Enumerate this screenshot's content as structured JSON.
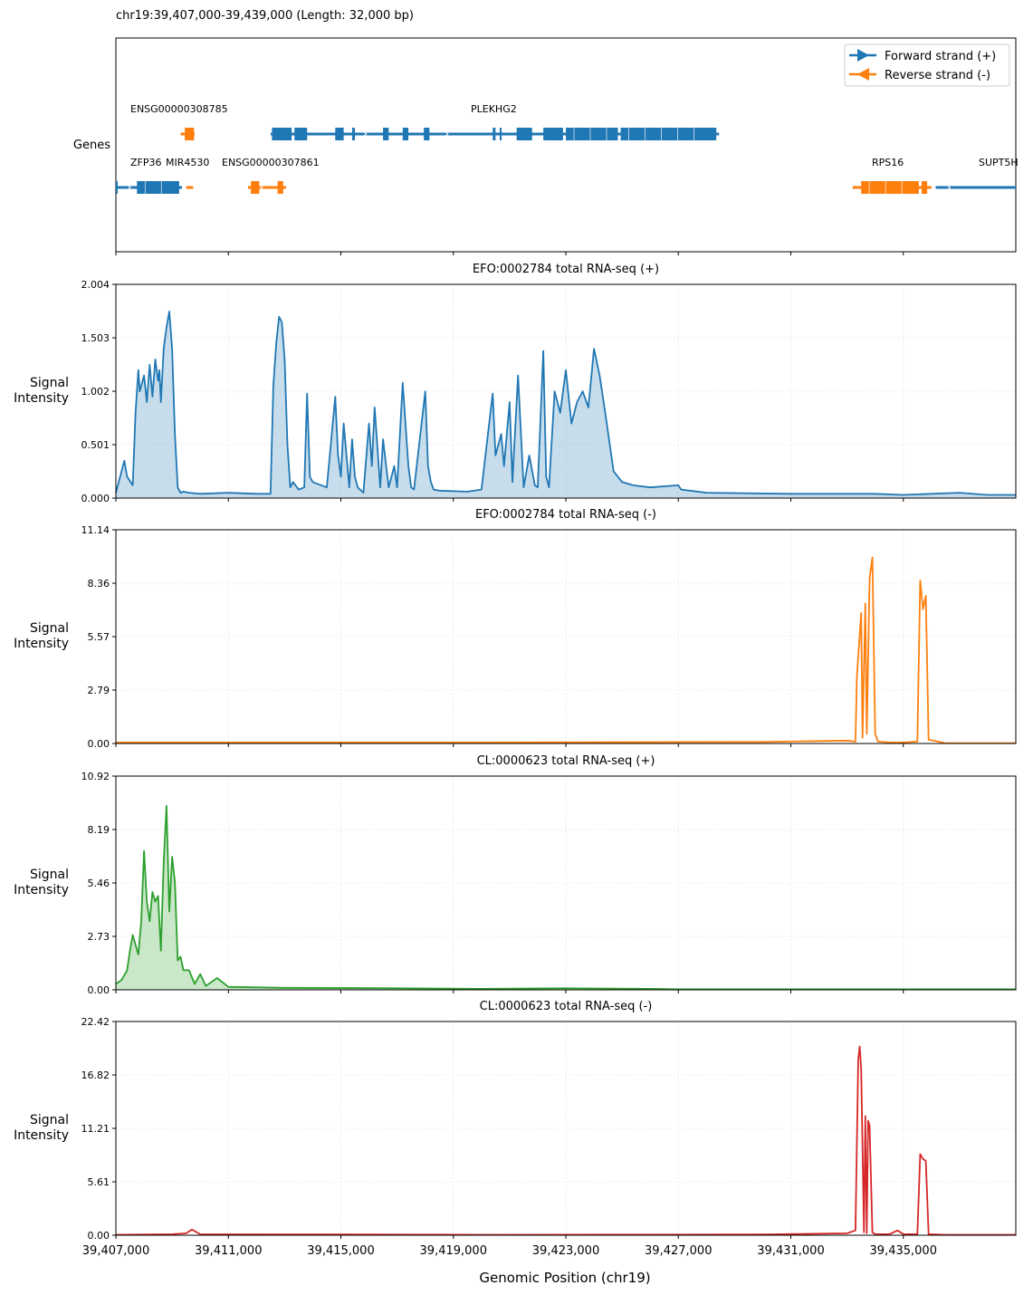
{
  "region_header": "chr19:39,407,000-39,439,000  (Length: 32,000 bp)",
  "genes_track": {
    "ylabel": "Genes",
    "legend": [
      {
        "label": "Forward strand (+)",
        "color": "#1f77b4",
        "direction": "right"
      },
      {
        "label": "Reverse strand (-)",
        "color": "#ff7f0e",
        "direction": "left"
      }
    ],
    "genes": [
      {
        "name": "ENSG00000308785",
        "strand": "-",
        "row": 0,
        "start": 39409300,
        "end": 39409800,
        "exons": [
          [
            39409450,
            39409780
          ]
        ]
      },
      {
        "name": "PLEKHG2",
        "strand": "+",
        "row": 0,
        "start": 39412500,
        "end": 39428450,
        "exons": [
          [
            39412550,
            39413250
          ],
          [
            39413350,
            39413800
          ],
          [
            39414800,
            39415100
          ],
          [
            39415400,
            39415500
          ],
          [
            39416500,
            39416700
          ],
          [
            39417200,
            39417400
          ],
          [
            39417950,
            39418150
          ],
          [
            39420400,
            39420500
          ],
          [
            39420650,
            39420700
          ],
          [
            39421250,
            39421800
          ],
          [
            39422200,
            39422900
          ],
          [
            39423000,
            39424850
          ],
          [
            39424950,
            39428350
          ]
        ]
      },
      {
        "name": "ZFP36",
        "strand": "+",
        "row": 1,
        "start": 39407000,
        "end": 39409350,
        "exons": [
          [
            39407000,
            39407050
          ],
          [
            39407750,
            39409250
          ]
        ]
      },
      {
        "name": "MIR4530",
        "strand": "-",
        "row": 1,
        "start": 39409500,
        "end": 39409750,
        "exons": []
      },
      {
        "name": "ENSG00000307861",
        "strand": "-",
        "row": 1,
        "start": 39411700,
        "end": 39413050,
        "exons": [
          [
            39411800,
            39412100
          ],
          [
            39412750,
            39412950
          ]
        ]
      },
      {
        "name": "RPS16",
        "strand": "-",
        "row": 1,
        "start": 39433200,
        "end": 39436000,
        "exons": [
          [
            39433500,
            39435550
          ],
          [
            39435650,
            39435850
          ]
        ]
      },
      {
        "name": "SUPT5H",
        "strand": "+",
        "row": 1,
        "start": 39436150,
        "end": 39439000,
        "exons": []
      }
    ]
  },
  "chart_data": [
    {
      "type": "area",
      "title": "EFO:0002784 total RNA-seq (+)",
      "ylabel": "Signal Intensity",
      "color": "#1f77b4",
      "fill": true,
      "yticks": [
        "0.000",
        "0.501",
        "1.002",
        "1.503",
        "2.004"
      ],
      "ylim": [
        0,
        2.004
      ],
      "x": [
        39407000,
        39407300,
        39407400,
        39407600,
        39407700,
        39407800,
        39407850,
        39408000,
        39408100,
        39408200,
        39408300,
        39408400,
        39408500,
        39408550,
        39408600,
        39408700,
        39408800,
        39408900,
        39409000,
        39409100,
        39409200,
        39409300,
        39409400,
        39409600,
        39410000,
        39411000,
        39412000,
        39412500,
        39412600,
        39412700,
        39412800,
        39412900,
        39413000,
        39413100,
        39413200,
        39413300,
        39413500,
        39413700,
        39413800,
        39413900,
        39414000,
        39414500,
        39414800,
        39414900,
        39415000,
        39415100,
        39415300,
        39415400,
        39415500,
        39415600,
        39415800,
        39416000,
        39416100,
        39416200,
        39416400,
        39416500,
        39416700,
        39416900,
        39417000,
        39417200,
        39417400,
        39417500,
        39417600,
        39418000,
        39418100,
        39418200,
        39418300,
        39418500,
        39419500,
        39420000,
        39420400,
        39420500,
        39420700,
        39420800,
        39421000,
        39421100,
        39421300,
        39421500,
        39421700,
        39421900,
        39422000,
        39422200,
        39422300,
        39422400,
        39422600,
        39422800,
        39423000,
        39423200,
        39423400,
        39423600,
        39423800,
        39424000,
        39424200,
        39424400,
        39424700,
        39425000,
        39425400,
        39426000,
        39427000,
        39427100,
        39428000,
        39431000,
        39434000,
        39435000,
        39437000,
        39438000,
        39439000
      ],
      "y": [
        0.05,
        0.35,
        0.2,
        0.12,
        0.8,
        1.2,
        1.0,
        1.15,
        0.9,
        1.25,
        0.95,
        1.3,
        1.1,
        1.2,
        0.9,
        1.4,
        1.6,
        1.75,
        1.4,
        0.6,
        0.1,
        0.05,
        0.06,
        0.05,
        0.04,
        0.05,
        0.04,
        0.04,
        1.05,
        1.45,
        1.7,
        1.65,
        1.3,
        0.5,
        0.1,
        0.15,
        0.08,
        0.1,
        0.98,
        0.2,
        0.15,
        0.1,
        0.95,
        0.4,
        0.2,
        0.7,
        0.1,
        0.55,
        0.2,
        0.1,
        0.05,
        0.7,
        0.3,
        0.85,
        0.1,
        0.55,
        0.1,
        0.3,
        0.1,
        1.08,
        0.3,
        0.1,
        0.08,
        1.0,
        0.3,
        0.15,
        0.08,
        0.07,
        0.06,
        0.08,
        0.98,
        0.4,
        0.6,
        0.3,
        0.9,
        0.15,
        1.15,
        0.1,
        0.4,
        0.12,
        0.1,
        1.38,
        0.2,
        0.1,
        1.0,
        0.8,
        1.2,
        0.7,
        0.9,
        1.0,
        0.85,
        1.4,
        1.15,
        0.8,
        0.25,
        0.15,
        0.12,
        0.1,
        0.12,
        0.08,
        0.05,
        0.04,
        0.04,
        0.03,
        0.05,
        0.03,
        0.03
      ]
    },
    {
      "type": "line",
      "title": "EFO:0002784 total RNA-seq (-)",
      "ylabel": "Signal Intensity",
      "color": "#ff7f0e",
      "fill": false,
      "yticks": [
        "0.00",
        "2.79",
        "5.57",
        "8.36",
        "11.14"
      ],
      "ylim": [
        0,
        11.14
      ],
      "x": [
        39407000,
        39420000,
        39430000,
        39433000,
        39433300,
        39433350,
        39433500,
        39433550,
        39433650,
        39433700,
        39433800,
        39433900,
        39434000,
        39434100,
        39434500,
        39435000,
        39435500,
        39435600,
        39435700,
        39435800,
        39435900,
        39436500,
        39439000
      ],
      "y": [
        0.05,
        0.05,
        0.08,
        0.15,
        0.1,
        3.5,
        6.8,
        0.3,
        7.3,
        0.5,
        8.6,
        9.7,
        0.5,
        0.1,
        0.05,
        0.05,
        0.1,
        8.5,
        7.0,
        7.7,
        0.2,
        0.02,
        0.02
      ]
    },
    {
      "type": "area",
      "title": "CL:0000623 total RNA-seq (+)",
      "ylabel": "Signal Intensity",
      "color": "#2ca02c",
      "fill": true,
      "yticks": [
        "0.00",
        "2.73",
        "5.46",
        "8.19",
        "10.92"
      ],
      "ylim": [
        0,
        10.92
      ],
      "x": [
        39407000,
        39407200,
        39407400,
        39407500,
        39407600,
        39407800,
        39407900,
        39408000,
        39408100,
        39408200,
        39408300,
        39408400,
        39408500,
        39408600,
        39408700,
        39408800,
        39408900,
        39409000,
        39409100,
        39409200,
        39409300,
        39409400,
        39409600,
        39409800,
        39410000,
        39410200,
        39410600,
        39411000,
        39413000,
        39417000,
        39420000,
        39423000,
        39426000,
        39427000,
        39439000
      ],
      "y": [
        0.3,
        0.5,
        1.0,
        2.0,
        2.8,
        1.8,
        3.5,
        7.1,
        4.5,
        3.5,
        5.0,
        4.5,
        4.8,
        2.0,
        6.5,
        9.4,
        4.0,
        6.8,
        5.5,
        1.5,
        1.7,
        1.0,
        1.0,
        0.3,
        0.8,
        0.2,
        0.6,
        0.15,
        0.1,
        0.08,
        0.05,
        0.08,
        0.05,
        0.03,
        0.03
      ]
    },
    {
      "type": "line",
      "title": "CL:0000623 total RNA-seq (-)",
      "ylabel": "Signal Intensity",
      "color": "#d62728",
      "fill": false,
      "yticks": [
        "0.00",
        "5.61",
        "11.21",
        "16.82",
        "22.42"
      ],
      "ylim": [
        0,
        22.42
      ],
      "x": [
        39407000,
        39409000,
        39409500,
        39409700,
        39410000,
        39420000,
        39430000,
        39433000,
        39433300,
        39433400,
        39433450,
        39433500,
        39433600,
        39433650,
        39433700,
        39433750,
        39433800,
        39433900,
        39434000,
        39434500,
        39434800,
        39435000,
        39435500,
        39435600,
        39435700,
        39435800,
        39435900,
        39436500,
        39439000
      ],
      "y": [
        0.05,
        0.1,
        0.2,
        0.6,
        0.1,
        0.05,
        0.08,
        0.2,
        0.5,
        18.5,
        19.8,
        17.5,
        0.3,
        12.5,
        0.2,
        12.0,
        11.5,
        0.3,
        0.1,
        0.1,
        0.5,
        0.1,
        0.1,
        8.5,
        8.0,
        7.8,
        0.1,
        0.05,
        0.05
      ]
    }
  ],
  "x_axis": {
    "label": "Genomic Position (chr19)",
    "xlim": [
      39407000,
      39439000
    ],
    "ticks": [
      39407000,
      39411000,
      39415000,
      39419000,
      39423000,
      39427000,
      39431000,
      39435000
    ],
    "tick_labels": [
      "39,407,000",
      "39,411,000",
      "39,415,000",
      "39,419,000",
      "39,423,000",
      "39,427,000",
      "39,431,000",
      "39,435,000"
    ]
  }
}
